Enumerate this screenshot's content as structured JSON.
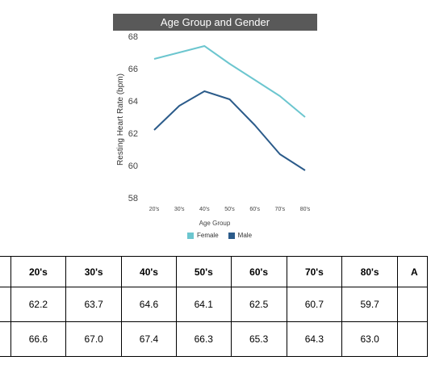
{
  "chart_data": {
    "type": "line",
    "title": "Age Group and Gender",
    "xlabel": "Age Group",
    "ylabel": "Resting Heart Rate (bpm)",
    "categories": [
      "20's",
      "30's",
      "40's",
      "50's",
      "60's",
      "70's",
      "80's"
    ],
    "ylim": [
      58,
      68
    ],
    "yticks": [
      58,
      60,
      62,
      64,
      66,
      68
    ],
    "grid": false,
    "legend_position": "bottom",
    "series": [
      {
        "name": "Female",
        "color": "#6cc6cf",
        "values": [
          66.6,
          67.0,
          67.4,
          66.3,
          65.3,
          64.3,
          63.0
        ]
      },
      {
        "name": "Male",
        "color": "#2b5b8a",
        "values": [
          62.2,
          63.7,
          64.6,
          64.1,
          62.5,
          60.7,
          59.7
        ]
      }
    ]
  },
  "table": {
    "headers": [
      "20's",
      "30's",
      "40's",
      "50's",
      "60's",
      "70's",
      "80's"
    ],
    "partial_header": "A",
    "rows": [
      {
        "label": "",
        "values": [
          "62.2",
          "63.7",
          "64.6",
          "64.1",
          "62.5",
          "60.7",
          "59.7"
        ]
      },
      {
        "label": "",
        "values": [
          "66.6",
          "67.0",
          "67.4",
          "66.3",
          "65.3",
          "64.3",
          "63.0"
        ]
      }
    ]
  }
}
